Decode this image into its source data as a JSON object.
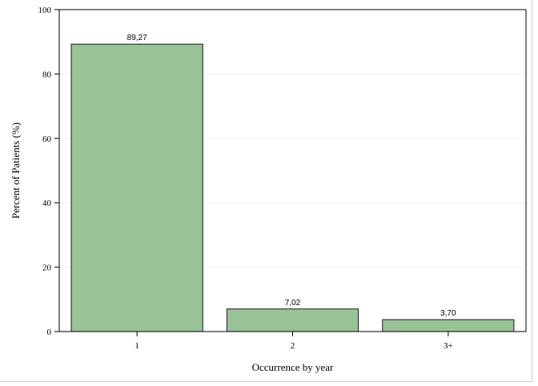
{
  "chart_data": {
    "type": "bar",
    "categories": [
      "1",
      "2",
      "3+"
    ],
    "values": [
      89.27,
      7.02,
      3.7
    ],
    "data_labels": [
      "89,27",
      "7,02",
      "3,70"
    ],
    "xlabel": "Occurrence by year",
    "ylabel": "Percent of Patients (%)",
    "ylim": [
      0,
      100
    ],
    "yticks": [
      "0",
      "20",
      "40",
      "60",
      "80",
      "100"
    ],
    "grid": "horizontal",
    "bar_color": "#99c297",
    "bar_edge_color": "#1a1a1a"
  }
}
